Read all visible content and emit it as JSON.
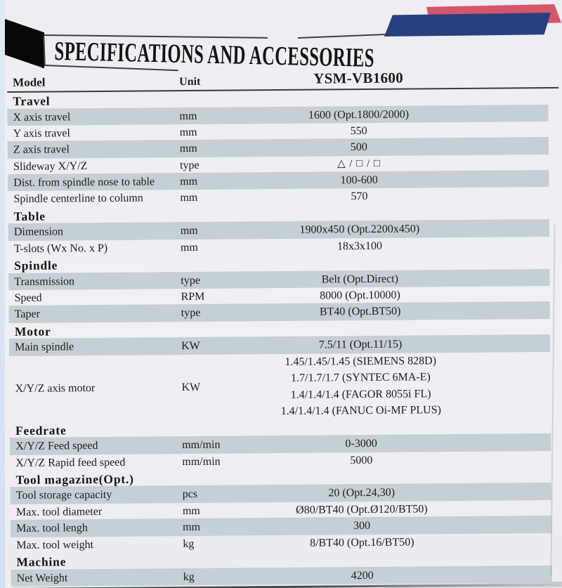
{
  "header": {
    "title": "SPECIFICATIONS AND ACCESSORIES",
    "columns": {
      "model": "Model",
      "unit": "Unit",
      "value": "YSM-VB1600"
    }
  },
  "colors": {
    "paper": "#f0eef2",
    "row_shade": "#c4d0d4",
    "accent_blue": "#28407f",
    "accent_red": "#d5566a",
    "banner_black": "#070707",
    "rule": "#3f3f42"
  },
  "sections": [
    {
      "name": "Travel",
      "rows": [
        {
          "label": "X axis travel",
          "unit": "mm",
          "value": "1600 (Opt.1800/2000)"
        },
        {
          "label": "Y axis travel",
          "unit": "mm",
          "value": "550"
        },
        {
          "label": "Z axis travel",
          "unit": "mm",
          "value": "500"
        },
        {
          "label": "Slideway X/Y/Z",
          "unit": "type",
          "value": "△ / □ / □"
        },
        {
          "label": "Dist. from spindle nose to table",
          "unit": "mm",
          "value": "100-600"
        },
        {
          "label": "Spindle centerline to column",
          "unit": "mm",
          "value": "570"
        }
      ]
    },
    {
      "name": "Table",
      "rows": [
        {
          "label": "Dimension",
          "unit": "mm",
          "value": "1900x450 (Opt.2200x450)"
        },
        {
          "label": "T-slots (Wx No. x P)",
          "unit": "mm",
          "value": "18x3x100"
        }
      ]
    },
    {
      "name": "Spindle",
      "rows": [
        {
          "label": "Transmission",
          "unit": "type",
          "value": "Belt (Opt.Direct)"
        },
        {
          "label": "Speed",
          "unit": "RPM",
          "value": "8000 (Opt.10000)"
        },
        {
          "label": "Taper",
          "unit": "type",
          "value": "BT40 (Opt.BT50)"
        }
      ]
    },
    {
      "name": "Motor",
      "rows": [
        {
          "label": "Main spindle",
          "unit": "KW",
          "value": "7.5/11 (Opt.11/15)"
        },
        {
          "label": "X/Y/Z axis motor",
          "unit": "KW",
          "values": [
            "1.45/1.45/1.45 (SIEMENS 828D)",
            "1.7/1.7/1.7 (SYNTEC 6MA-E)",
            "1.4/1.4/1.4 (FAGOR 8055i FL)",
            "1.4/1.4/1.4 (FANUC Oi-MF PLUS)"
          ]
        }
      ]
    },
    {
      "name": "Feedrate",
      "rows": [
        {
          "label": "X/Y/Z Feed speed",
          "unit": "mm/min",
          "value": "0-3000"
        },
        {
          "label": "X/Y/Z Rapid feed speed",
          "unit": "mm/min",
          "value": "5000"
        }
      ]
    },
    {
      "name": "Tool magazine(Opt.)",
      "rows": [
        {
          "label": "Tool storage capacity",
          "unit": "pcs",
          "value": "20 (Opt.24,30)"
        },
        {
          "label": "Max. tool diameter",
          "unit": "mm",
          "value": "Ø80/BT40 (Opt.Ø120/BT50)"
        },
        {
          "label": "Max. tool lengh",
          "unit": "mm",
          "value": "300"
        },
        {
          "label": "Max. tool weight",
          "unit": "kg",
          "value": "8/BT40 (Opt.16/BT50)"
        }
      ]
    },
    {
      "name": "Machine",
      "rows": [
        {
          "label": "Net Weight",
          "unit": "kg",
          "value": "4200"
        }
      ]
    }
  ]
}
